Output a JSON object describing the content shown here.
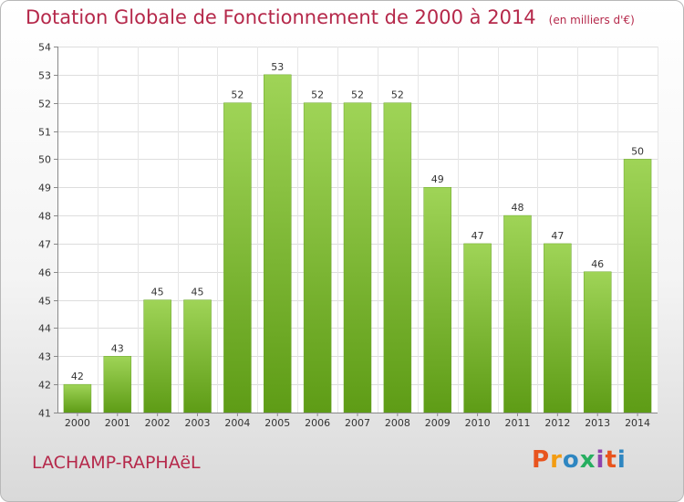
{
  "header": {
    "title": "Dotation Globale de Fonctionnement de 2000 à 2014",
    "unit": "(en milliers d'€)"
  },
  "footer": {
    "commune": "LACHAMP-RAPHAëL",
    "logo": "Proxiti",
    "logo_colors": [
      "#e8541e",
      "#f39c12",
      "#2e86c1",
      "#27ae60",
      "#8e44ad",
      "#e8541e",
      "#2e86c1"
    ]
  },
  "chart_data": {
    "type": "bar",
    "categories": [
      "2000",
      "2001",
      "2002",
      "2003",
      "2004",
      "2005",
      "2006",
      "2007",
      "2008",
      "2009",
      "2010",
      "2011",
      "2012",
      "2013",
      "2014"
    ],
    "values": [
      42,
      43,
      45,
      45,
      52,
      53,
      52,
      52,
      52,
      49,
      47,
      48,
      47,
      46,
      50
    ],
    "ylim": [
      41,
      54
    ],
    "yticks": [
      41,
      42,
      43,
      44,
      45,
      46,
      47,
      48,
      49,
      50,
      51,
      52,
      53,
      54
    ],
    "grid": true,
    "bar_color": "#7ab82e"
  }
}
